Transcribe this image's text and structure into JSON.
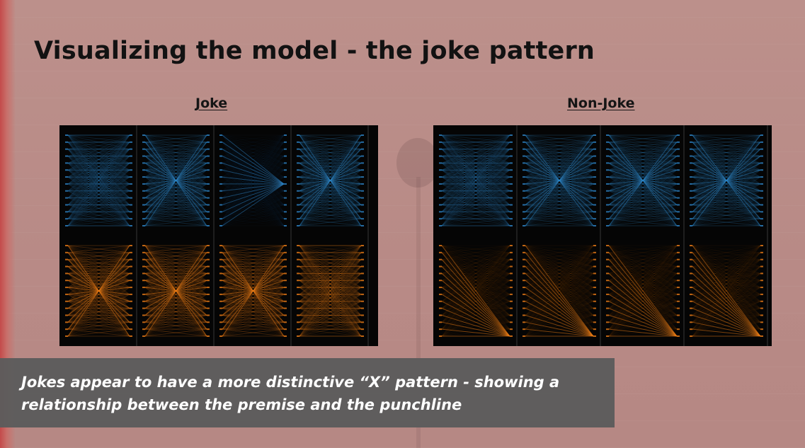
{
  "slide": {
    "title": "Visualizing the model - the joke pattern",
    "caption": "Jokes appear to have a more distinctive “X” pattern  - showing a relationship between the premise and the punchline",
    "colors": {
      "background": "#b98b87",
      "left_bar": "#c44a4a",
      "panel_bg": "#050505",
      "blue": "#2e86c9",
      "orange": "#ee7d16",
      "caption_box": "#5c5c5c"
    }
  },
  "panels": [
    {
      "heading": "Joke",
      "rows": [
        {
          "color": "blue",
          "patterns": [
            "mesh",
            "x",
            "fan",
            "x"
          ]
        },
        {
          "color": "orange",
          "patterns": [
            "x",
            "x",
            "x",
            "mesh"
          ]
        }
      ]
    },
    {
      "heading": "Non-Joke",
      "rows": [
        {
          "color": "blue",
          "patterns": [
            "mesh",
            "x",
            "x",
            "x"
          ]
        },
        {
          "color": "orange",
          "patterns": [
            "fanbr",
            "fanbr",
            "fanbr",
            "fanbr"
          ]
        }
      ]
    }
  ]
}
